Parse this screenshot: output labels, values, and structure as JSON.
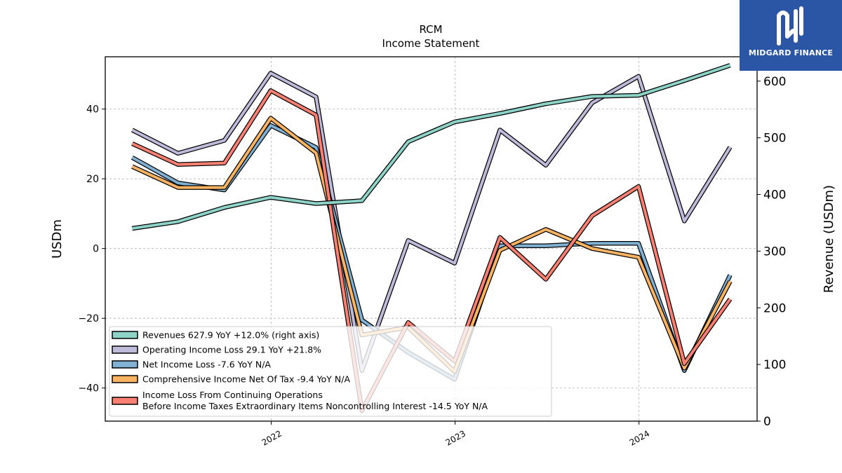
{
  "brand": {
    "name": "MIDGARD FINANCE",
    "bg_color": "#2a56a5"
  },
  "chart_data": {
    "type": "line",
    "title": "RCM",
    "subtitle": "Income Statement",
    "ylabel_left": "USDm",
    "ylabel_right": "Revenue (USDm)",
    "ylim_left": [
      -49.5,
      55
    ],
    "ylim_right": [
      0,
      643
    ],
    "yticks_left": [
      -40,
      -20,
      0,
      20,
      40
    ],
    "yticks_right": [
      0,
      100,
      200,
      300,
      400,
      500,
      600
    ],
    "xticks": [
      "2022",
      "2023",
      "2024"
    ],
    "x": [
      "2021-03",
      "2021-06",
      "2021-09",
      "2021-12",
      "2022-03",
      "2022-06",
      "2022-09",
      "2022-12",
      "2023-03",
      "2023-06",
      "2023-09",
      "2023-12",
      "2024-03",
      "2024-06"
    ],
    "grid": true,
    "legend_position": "lower-left",
    "series": [
      {
        "name": "Revenues",
        "legend": "Revenues  627.9 YoY +12.0% (right axis)",
        "color": "#8dd3c7",
        "axis": "right",
        "values": [
          340,
          352,
          377,
          395,
          384,
          389,
          493,
          528,
          543,
          560,
          573,
          575,
          601,
          627.9
        ]
      },
      {
        "name": "Operating Income Loss",
        "legend": "Operating Income Loss  29.1 YoY +21.8%",
        "color": "#bebada",
        "axis": "left",
        "values": [
          34,
          27.3,
          31,
          50.3,
          43.5,
          -35,
          2.3,
          -4.2,
          34,
          23.9,
          41.8,
          49.4,
          7.9,
          29.1
        ]
      },
      {
        "name": "Net Income Loss",
        "legend": "Net Income Loss  -7.6 YoY N/A",
        "color": "#80b1d3",
        "axis": "left",
        "values": [
          26.1,
          18.8,
          16.8,
          35.3,
          29,
          -20.5,
          -29.8,
          -37.5,
          0.8,
          0.8,
          1.5,
          1.5,
          -35,
          -7.6
        ]
      },
      {
        "name": "Comprehensive Income Net Of Tax",
        "legend": "Comprehensive Income Net Of Tax  -9.4 YoY N/A",
        "color": "#fdb462",
        "axis": "left",
        "values": [
          23.5,
          17.5,
          17.5,
          37.4,
          27.4,
          -24.8,
          -22.6,
          -35.3,
          -0.5,
          5.5,
          0,
          -2.5,
          -34.3,
          -9.4
        ]
      },
      {
        "name": "Income Loss From Continuing Operations Before Income Taxes Extraordinary Items Noncontrolling Interest",
        "legend_line1": "Income Loss From Continuing Operations",
        "legend_line2": "Before Income Taxes Extraordinary Items Noncontrolling Interest  -14.5 YoY N/A",
        "color": "#fb8072",
        "axis": "left",
        "values": [
          30.1,
          24.1,
          24.5,
          45.3,
          38.3,
          -46.5,
          -21.2,
          -32.3,
          3.2,
          -8.8,
          9.4,
          17.8,
          -33,
          -14.5
        ]
      }
    ]
  }
}
